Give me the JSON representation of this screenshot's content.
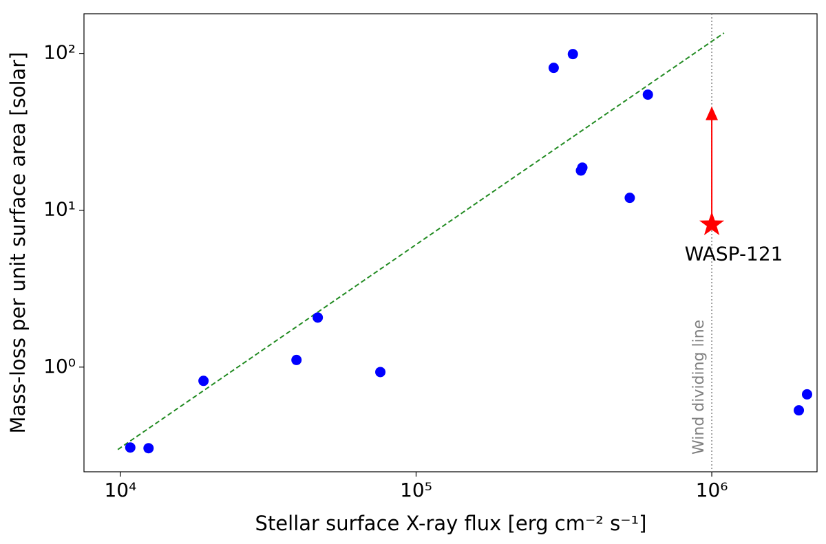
{
  "chart_data": {
    "type": "scatter",
    "xlabel": "Stellar surface X-ray flux [erg cm⁻² s⁻¹]",
    "ylabel": "Mass-loss per unit surface area [solar]",
    "xscale": "log",
    "yscale": "log",
    "xlim": [
      7530,
      2270000
    ],
    "ylim": [
      0.215,
      179
    ],
    "xticks": [
      {
        "value": 10000,
        "label": "10⁴"
      },
      {
        "value": 100000,
        "label": "10⁵"
      },
      {
        "value": 1000000,
        "label": "10⁶"
      }
    ],
    "yticks": [
      {
        "value": 1,
        "label": "10⁰"
      },
      {
        "value": 10,
        "label": "10¹"
      },
      {
        "value": 100,
        "label": "10²"
      }
    ],
    "series": [
      {
        "color": "#0000ff",
        "x": [
          10800,
          12450,
          19100,
          39400,
          46500,
          75700,
          292000,
          339000,
          361000,
          365000,
          528000,
          608000,
          1970000,
          2100000
        ],
        "values": [
          0.307,
          0.304,
          0.817,
          1.11,
          2.07,
          0.93,
          80.9,
          99,
          17.9,
          18.7,
          12,
          54.6,
          0.53,
          0.67
        ]
      }
    ],
    "fit": {
      "color": "#228b22",
      "x": [
        9800,
        1100000
      ],
      "values": [
        0.298,
        135
      ]
    },
    "star": {
      "label": "WASP-121",
      "color": "#ff0000",
      "x": 1000000,
      "y": 8.1,
      "upper": 45.9
    },
    "vline": {
      "label": "Wind dividing line",
      "color": "#808080",
      "x": 1000000
    }
  }
}
